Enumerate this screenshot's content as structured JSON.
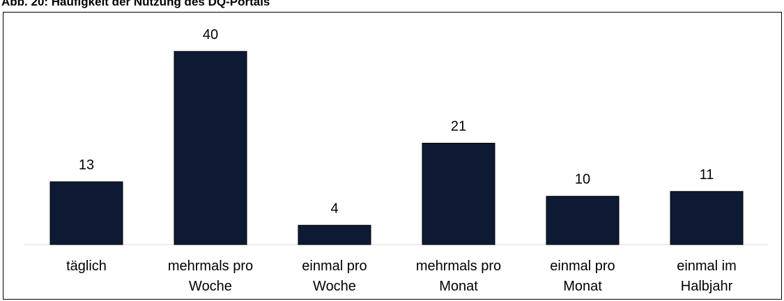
{
  "title": "Abb. 20: Häufigkeit der Nutzung des DQ-Portals",
  "colors": {
    "bar": "#0e1a33",
    "axis": "#d9d9d9",
    "text": "#000000",
    "frame": "#000000"
  },
  "chart_data": {
    "type": "bar",
    "title": "Abb. 20: Häufigkeit der Nutzung des DQ-Portals",
    "xlabel": "",
    "ylabel": "",
    "ylim": [
      0,
      40
    ],
    "grid": false,
    "legend": "none",
    "categories": [
      [
        "täglich"
      ],
      [
        "mehrmals pro",
        "Woche"
      ],
      [
        "einmal pro",
        "Woche"
      ],
      [
        "mehrmals pro",
        "Monat"
      ],
      [
        "einmal pro",
        "Monat"
      ],
      [
        "einmal im",
        "Halbjahr"
      ]
    ],
    "values": [
      13,
      40,
      4,
      21,
      10,
      11
    ]
  }
}
